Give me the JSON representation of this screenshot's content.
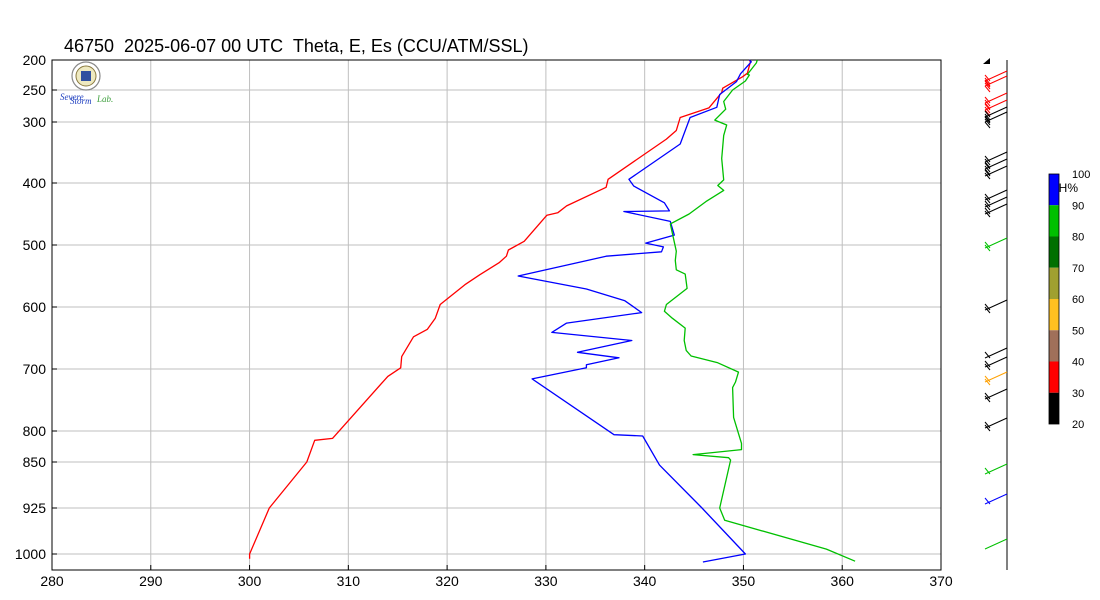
{
  "title": "46750  2025-06-07 00 UTC  Theta, E, Es (CCU/ATM/SSL)",
  "logo": {
    "text_severe": "Severe",
    "text_storm": "Storm",
    "text_lab": "Lab."
  },
  "colorbar": {
    "title": "RH%",
    "ticks": [
      "20",
      "30",
      "40",
      "50",
      "60",
      "70",
      "80",
      "90",
      "100"
    ],
    "colors": [
      "#000000",
      "#ff0000",
      "#a0705a",
      "#ffc020",
      "#a0a030",
      "#007000",
      "#00c000",
      "#0000ff"
    ]
  },
  "chart_data": {
    "type": "line",
    "x_ticks": [
      280,
      290,
      300,
      310,
      320,
      330,
      340,
      350,
      360,
      370
    ],
    "xlim": [
      280,
      370
    ],
    "y_ticks": [
      200,
      250,
      300,
      400,
      500,
      600,
      700,
      800,
      850,
      925,
      1000
    ],
    "ylim": [
      1010,
      200
    ],
    "y_axis": "pressure (hPa), log-like scale",
    "grid": true,
    "series": [
      {
        "color": "#ff0000",
        "points": [
          [
            300.0,
            1006
          ],
          [
            300.0,
            1000
          ],
          [
            302.0,
            925
          ],
          [
            305.8,
            850
          ],
          [
            306.6,
            815
          ],
          [
            308.4,
            812
          ],
          [
            314.0,
            712
          ],
          [
            315.3,
            698
          ],
          [
            315.4,
            680
          ],
          [
            316.6,
            648
          ],
          [
            318.0,
            636
          ],
          [
            318.8,
            618
          ],
          [
            319.3,
            596
          ],
          [
            321.8,
            564
          ],
          [
            323.3,
            548
          ],
          [
            325.3,
            528
          ],
          [
            326.0,
            518
          ],
          [
            326.2,
            508
          ],
          [
            327.8,
            494
          ],
          [
            330.1,
            452
          ],
          [
            331.2,
            448
          ],
          [
            332.1,
            437
          ],
          [
            336.1,
            407
          ],
          [
            336.3,
            394
          ],
          [
            342.2,
            328
          ],
          [
            343.2,
            314
          ],
          [
            343.6,
            293
          ],
          [
            346.5,
            278
          ],
          [
            347.8,
            254
          ],
          [
            347.9,
            247
          ],
          [
            349.9,
            228
          ],
          [
            350.4,
            222
          ],
          [
            350.7,
            203
          ],
          [
            350.6,
            200
          ]
        ]
      },
      {
        "color": "#0000ff",
        "points": [
          [
            345.9,
            1010
          ],
          [
            350.2,
            1000
          ],
          [
            345.8,
            925
          ],
          [
            341.5,
            855
          ],
          [
            339.8,
            808
          ],
          [
            336.9,
            806
          ],
          [
            328.6,
            716
          ],
          [
            334.1,
            698
          ],
          [
            334.1,
            693
          ],
          [
            337.4,
            682
          ],
          [
            333.2,
            673
          ],
          [
            338.7,
            654
          ],
          [
            330.6,
            641
          ],
          [
            332.1,
            626
          ],
          [
            339.7,
            609
          ],
          [
            338.0,
            590
          ],
          [
            334.1,
            571
          ],
          [
            327.2,
            550
          ],
          [
            336.1,
            518
          ],
          [
            341.7,
            511
          ],
          [
            341.9,
            503
          ],
          [
            340.1,
            497
          ],
          [
            343.0,
            484
          ],
          [
            342.6,
            462
          ],
          [
            337.9,
            446
          ],
          [
            342.5,
            445
          ],
          [
            342.0,
            432
          ],
          [
            338.9,
            405
          ],
          [
            338.4,
            394
          ],
          [
            343.6,
            336
          ],
          [
            344.6,
            293
          ],
          [
            347.3,
            277
          ],
          [
            347.6,
            257
          ],
          [
            349.3,
            236
          ],
          [
            349.7,
            223
          ],
          [
            350.8,
            203
          ],
          [
            350.6,
            200
          ]
        ]
      },
      {
        "color": "#00c000",
        "points": [
          [
            361.3,
            1009
          ],
          [
            358.4,
            992
          ],
          [
            348.1,
            945
          ],
          [
            347.6,
            925
          ],
          [
            348.7,
            847
          ],
          [
            348.5,
            843
          ],
          [
            344.9,
            838
          ],
          [
            349.8,
            830
          ],
          [
            349.8,
            820
          ],
          [
            349.0,
            778
          ],
          [
            348.9,
            730
          ],
          [
            349.2,
            721
          ],
          [
            349.5,
            705
          ],
          [
            347.4,
            690
          ],
          [
            344.7,
            679
          ],
          [
            344.2,
            670
          ],
          [
            344.0,
            654
          ],
          [
            344.1,
            634
          ],
          [
            342.8,
            618
          ],
          [
            342.0,
            607
          ],
          [
            342.2,
            596
          ],
          [
            344.3,
            570
          ],
          [
            344.1,
            547
          ],
          [
            343.2,
            540
          ],
          [
            343.1,
            525
          ],
          [
            343.2,
            510
          ],
          [
            342.6,
            466
          ],
          [
            344.5,
            450
          ],
          [
            346.2,
            430
          ],
          [
            348.0,
            412
          ],
          [
            347.4,
            404
          ],
          [
            348.0,
            395
          ],
          [
            347.8,
            360
          ],
          [
            348.0,
            322
          ],
          [
            348.3,
            305
          ],
          [
            347.1,
            297
          ],
          [
            348.2,
            280
          ],
          [
            348.0,
            268
          ],
          [
            348.9,
            250
          ],
          [
            350.2,
            235
          ],
          [
            350.6,
            225
          ],
          [
            350.4,
            224
          ],
          [
            351.3,
            205
          ],
          [
            351.4,
            200
          ]
        ]
      }
    ]
  }
}
